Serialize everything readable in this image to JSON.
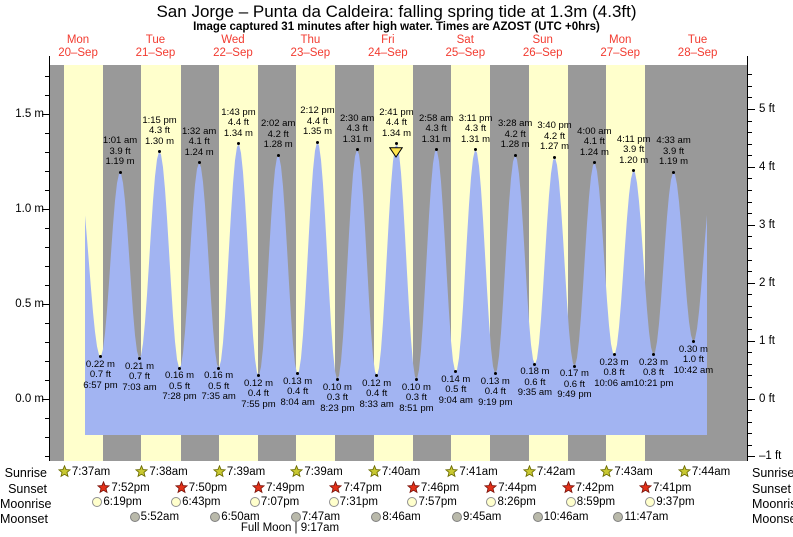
{
  "full_moon": "Full Moon | 9:17am",
  "colors": {
    "night_band": "#999999",
    "day_band": "#ffffcc",
    "tide_fill": "#a2b4f2",
    "day_label": "#f23b30",
    "axis": "#000000",
    "sunrise_star": "#c9c932",
    "sunrise_star_edge": "#6b6b00",
    "sunset_star": "#e23018",
    "sunset_star_edge": "#7c150c",
    "moonrise_fill": "#ffffcc",
    "moonrise_edge": "#8f8f8f",
    "moonset_fill": "#b9b9aa",
    "moonset_edge": "#7f7f7f",
    "marker_fill": "#ffe44d",
    "marker_edge": "#000000"
  },
  "chart_data": {
    "type": "area",
    "title": "San Jorge – Punta da Caldeira: falling  spring tide at 1.3m (4.3ft)",
    "subtitle": "Image captured 31 minutes after high water. Times are AZOST (UTC +0hrs)",
    "categories": [
      {
        "name": "Mon",
        "date": "20–Sep"
      },
      {
        "name": "Tue",
        "date": "21–Sep"
      },
      {
        "name": "Wed",
        "date": "22–Sep"
      },
      {
        "name": "Thu",
        "date": "23–Sep"
      },
      {
        "name": "Fri",
        "date": "24–Sep"
      },
      {
        "name": "Sat",
        "date": "25–Sep"
      },
      {
        "name": "Sun",
        "date": "26–Sep"
      },
      {
        "name": "Mon",
        "date": "27–Sep"
      },
      {
        "name": "Tue",
        "date": "28–Sep"
      }
    ],
    "y_left": {
      "unit": "m",
      "ticks": [
        0,
        0.5,
        1,
        1.5
      ],
      "tick_labels": [
        "0.0 m",
        "0.5 m",
        "1.0 m",
        "1.5 m"
      ]
    },
    "y_right": {
      "unit": "ft",
      "ticks": [
        -1,
        0,
        1,
        2,
        3,
        4,
        5
      ],
      "tick_labels": [
        "–1 ft",
        "0 ft",
        "1 ft",
        "2 ft",
        "3 ft",
        "4 ft",
        "5 ft"
      ]
    },
    "grid": false,
    "current_tide": {
      "state": "falling",
      "height_label": "1.3m (4.3ft)",
      "marked_event_time": "2:41 pm"
    },
    "tide_events": [
      {
        "day": 0,
        "type": "low",
        "time": "6:57 pm",
        "m": 0.22,
        "ft": 0.7
      },
      {
        "day": 1,
        "type": "high",
        "time": "1:01 am",
        "m": 1.19,
        "ft": 3.9
      },
      {
        "day": 1,
        "type": "low",
        "time": "7:03 am",
        "m": 0.21,
        "ft": 0.7
      },
      {
        "day": 1,
        "type": "high",
        "time": "1:15 pm",
        "m": 1.3,
        "ft": 4.3
      },
      {
        "day": 1,
        "type": "low",
        "time": "7:28 pm",
        "m": 0.16,
        "ft": 0.5
      },
      {
        "day": 2,
        "type": "high",
        "time": "1:32 am",
        "m": 1.24,
        "ft": 4.1
      },
      {
        "day": 2,
        "type": "low",
        "time": "7:35 am",
        "m": 0.16,
        "ft": 0.5
      },
      {
        "day": 2,
        "type": "high",
        "time": "1:43 pm",
        "m": 1.34,
        "ft": 4.4
      },
      {
        "day": 2,
        "type": "low",
        "time": "7:55 pm",
        "m": 0.12,
        "ft": 0.4
      },
      {
        "day": 3,
        "type": "high",
        "time": "2:02 am",
        "m": 1.28,
        "ft": 4.2
      },
      {
        "day": 3,
        "type": "low",
        "time": "8:04 am",
        "m": 0.13,
        "ft": 0.4
      },
      {
        "day": 3,
        "type": "high",
        "time": "2:12 pm",
        "m": 1.35,
        "ft": 4.4
      },
      {
        "day": 3,
        "type": "low",
        "time": "8:23 pm",
        "m": 0.1,
        "ft": 0.3
      },
      {
        "day": 4,
        "type": "high",
        "time": "2:30 am",
        "m": 1.31,
        "ft": 4.3
      },
      {
        "day": 4,
        "type": "low",
        "time": "8:33 am",
        "m": 0.12,
        "ft": 0.4
      },
      {
        "day": 4,
        "type": "high",
        "time": "2:41 pm",
        "m": 1.34,
        "ft": 4.4,
        "current": true
      },
      {
        "day": 4,
        "type": "low",
        "time": "8:51 pm",
        "m": 0.1,
        "ft": 0.3
      },
      {
        "day": 5,
        "type": "high",
        "time": "2:58 am",
        "m": 1.31,
        "ft": 4.3
      },
      {
        "day": 5,
        "type": "low",
        "time": "9:04 am",
        "m": 0.14,
        "ft": 0.5
      },
      {
        "day": 5,
        "type": "high",
        "time": "3:11 pm",
        "m": 1.31,
        "ft": 4.3
      },
      {
        "day": 5,
        "type": "low",
        "time": "9:19 pm",
        "m": 0.13,
        "ft": 0.4
      },
      {
        "day": 6,
        "type": "high",
        "time": "3:28 am",
        "m": 1.28,
        "ft": 4.2
      },
      {
        "day": 6,
        "type": "low",
        "time": "9:35 am",
        "m": 0.18,
        "ft": 0.6
      },
      {
        "day": 6,
        "type": "high",
        "time": "3:40 pm",
        "m": 1.27,
        "ft": 4.2
      },
      {
        "day": 6,
        "type": "low",
        "time": "9:49 pm",
        "m": 0.17,
        "ft": 0.6
      },
      {
        "day": 7,
        "type": "high",
        "time": "4:00 am",
        "m": 1.24,
        "ft": 4.1
      },
      {
        "day": 7,
        "type": "low",
        "time": "10:06 am",
        "m": 0.23,
        "ft": 0.8
      },
      {
        "day": 7,
        "type": "high",
        "time": "4:11 pm",
        "m": 1.2,
        "ft": 3.9
      },
      {
        "day": 7,
        "type": "low",
        "time": "10:21 pm",
        "m": 0.23,
        "ft": 0.8
      },
      {
        "day": 8,
        "type": "high",
        "time": "4:33 am",
        "m": 1.19,
        "ft": 3.9
      },
      {
        "day": 8,
        "type": "low",
        "time": "10:42 am",
        "m": 0.3,
        "ft": 1.0
      }
    ]
  },
  "sun_moon": {
    "rows": [
      {
        "label": "Sunrise",
        "icon": "sunrise-star",
        "events": [
          {
            "day": 0,
            "time": "7:37am"
          },
          {
            "day": 1,
            "time": "7:38am"
          },
          {
            "day": 2,
            "time": "7:39am"
          },
          {
            "day": 3,
            "time": "7:39am"
          },
          {
            "day": 4,
            "time": "7:40am"
          },
          {
            "day": 5,
            "time": "7:41am"
          },
          {
            "day": 6,
            "time": "7:42am"
          },
          {
            "day": 7,
            "time": "7:43am"
          },
          {
            "day": 8,
            "time": "7:44am"
          }
        ]
      },
      {
        "label": "Sunset",
        "icon": "sunset-star",
        "events": [
          {
            "day": 0,
            "time": "7:52pm"
          },
          {
            "day": 1,
            "time": "7:50pm"
          },
          {
            "day": 2,
            "time": "7:49pm"
          },
          {
            "day": 3,
            "time": "7:47pm"
          },
          {
            "day": 4,
            "time": "7:46pm"
          },
          {
            "day": 5,
            "time": "7:44pm"
          },
          {
            "day": 6,
            "time": "7:42pm"
          },
          {
            "day": 7,
            "time": "7:41pm"
          }
        ]
      },
      {
        "label": "Moonrise",
        "icon": "moonrise-circle",
        "events": [
          {
            "day": 0,
            "time": "6:19pm"
          },
          {
            "day": 1,
            "time": "6:43pm"
          },
          {
            "day": 2,
            "time": "7:07pm"
          },
          {
            "day": 3,
            "time": "7:31pm"
          },
          {
            "day": 4,
            "time": "7:57pm"
          },
          {
            "day": 5,
            "time": "8:26pm"
          },
          {
            "day": 6,
            "time": "8:59pm"
          },
          {
            "day": 7,
            "time": "9:37pm"
          }
        ]
      },
      {
        "label": "Moonset",
        "icon": "moonset-circle",
        "events": [
          {
            "day": 1,
            "time": "5:52am"
          },
          {
            "day": 2,
            "time": "6:50am"
          },
          {
            "day": 3,
            "time": "7:47am"
          },
          {
            "day": 4,
            "time": "8:46am"
          },
          {
            "day": 5,
            "time": "9:45am"
          },
          {
            "day": 6,
            "time": "10:46am"
          },
          {
            "day": 7,
            "time": "11:47am"
          }
        ]
      }
    ]
  }
}
